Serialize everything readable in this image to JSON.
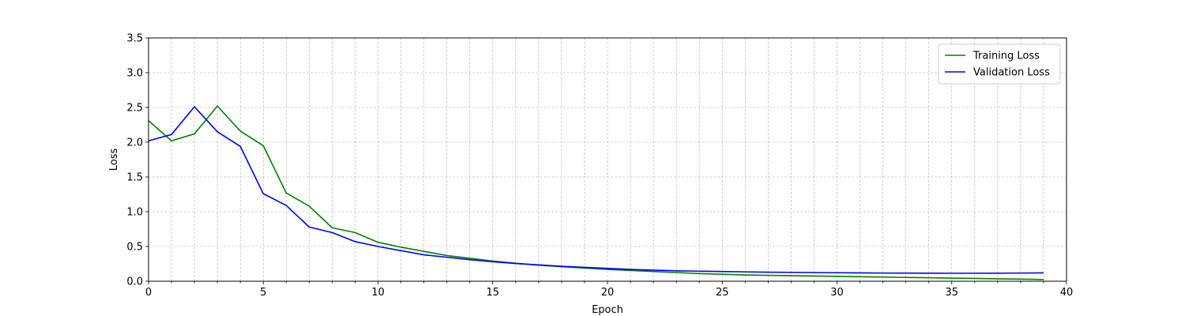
{
  "chart_data": {
    "type": "line",
    "title": "",
    "xlabel": "Epoch",
    "ylabel": "Loss",
    "xlim": [
      0,
      40
    ],
    "ylim": [
      0,
      3.5
    ],
    "x_ticks": [
      0,
      5,
      10,
      15,
      20,
      25,
      30,
      35,
      40
    ],
    "y_ticks": [
      0.0,
      0.5,
      1.0,
      1.5,
      2.0,
      2.5,
      3.0,
      3.5
    ],
    "grid": true,
    "legend_position": "top-right",
    "x": [
      0,
      1,
      2,
      3,
      4,
      5,
      6,
      7,
      8,
      9,
      10,
      11,
      12,
      13,
      14,
      15,
      16,
      17,
      18,
      19,
      20,
      21,
      22,
      23,
      24,
      25,
      26,
      27,
      28,
      29,
      30,
      31,
      32,
      33,
      34,
      35,
      36,
      37,
      38,
      39
    ],
    "series": [
      {
        "name": "Training Loss",
        "color": "#008000",
        "values": [
          2.31,
          2.02,
          2.12,
          2.52,
          2.16,
          1.95,
          1.27,
          1.08,
          0.77,
          0.7,
          0.56,
          0.49,
          0.43,
          0.37,
          0.33,
          0.29,
          0.26,
          0.23,
          0.21,
          0.19,
          0.17,
          0.155,
          0.14,
          0.125,
          0.11,
          0.1,
          0.09,
          0.085,
          0.08,
          0.075,
          0.07,
          0.065,
          0.06,
          0.055,
          0.05,
          0.045,
          0.04,
          0.035,
          0.03,
          0.025
        ]
      },
      {
        "name": "Validation Loss",
        "color": "#0000ff",
        "values": [
          2.02,
          2.11,
          2.51,
          2.15,
          1.94,
          1.26,
          1.09,
          0.78,
          0.7,
          0.57,
          0.5,
          0.44,
          0.38,
          0.345,
          0.31,
          0.28,
          0.255,
          0.235,
          0.215,
          0.2,
          0.185,
          0.17,
          0.16,
          0.15,
          0.145,
          0.14,
          0.135,
          0.13,
          0.128,
          0.125,
          0.122,
          0.12,
          0.118,
          0.117,
          0.116,
          0.115,
          0.115,
          0.116,
          0.118,
          0.12
        ]
      }
    ]
  }
}
